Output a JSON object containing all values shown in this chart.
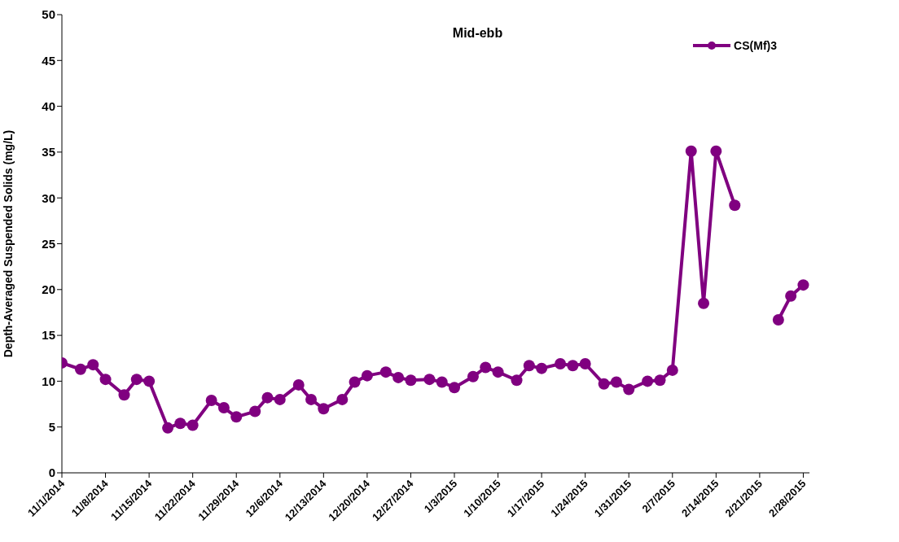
{
  "chart_data": {
    "type": "line",
    "title": "Mid-ebb",
    "ylabel": "Depth-Averaged Suspended Solids (mg/L)",
    "x": [
      "2014-11-01",
      "2014-11-04",
      "2014-11-06",
      "2014-11-08",
      "2014-11-11",
      "2014-11-13",
      "2014-11-15",
      "2014-11-18",
      "2014-11-20",
      "2014-11-22",
      "2014-11-25",
      "2014-11-27",
      "2014-11-29",
      "2014-12-02",
      "2014-12-04",
      "2014-12-06",
      "2014-12-09",
      "2014-12-11",
      "2014-12-13",
      "2014-12-16",
      "2014-12-18",
      "2014-12-20",
      "2014-12-23",
      "2014-12-25",
      "2014-12-27",
      "2014-12-30",
      "2015-01-01",
      "2015-01-03",
      "2015-01-06",
      "2015-01-08",
      "2015-01-10",
      "2015-01-13",
      "2015-01-15",
      "2015-01-17",
      "2015-01-20",
      "2015-01-22",
      "2015-01-24",
      "2015-01-27",
      "2015-01-29",
      "2015-01-31",
      "2015-02-03",
      "2015-02-05",
      "2015-02-07",
      "2015-02-10",
      "2015-02-12",
      "2015-02-14",
      "2015-02-17",
      "2015-02-20",
      "2015-02-24",
      "2015-02-26",
      "2015-02-28"
    ],
    "series": [
      {
        "name": "CS(Mf)3",
        "color": "#800080",
        "values": [
          12.0,
          11.3,
          11.8,
          10.2,
          8.5,
          10.2,
          10.0,
          4.9,
          5.4,
          5.2,
          7.9,
          7.1,
          6.1,
          6.7,
          8.2,
          8.0,
          9.6,
          8.0,
          7.0,
          8.0,
          9.9,
          10.6,
          11.0,
          10.4,
          10.1,
          10.2,
          9.9,
          9.3,
          10.5,
          11.5,
          11.0,
          10.1,
          11.7,
          11.4,
          11.9,
          11.7,
          11.9,
          9.7,
          9.9,
          9.1,
          10.0,
          10.1,
          11.2,
          35.1,
          18.5,
          35.1,
          29.2,
          null,
          16.7,
          19.3,
          20.5
        ]
      }
    ],
    "xlim": [
      "2014-11-01",
      "2015-03-01"
    ],
    "xticks": [
      {
        "value": "2014-11-01",
        "label": "11/1/2014"
      },
      {
        "value": "2014-11-08",
        "label": "11/8/2014"
      },
      {
        "value": "2014-11-15",
        "label": "11/15/2014"
      },
      {
        "value": "2014-11-22",
        "label": "11/22/2014"
      },
      {
        "value": "2014-11-29",
        "label": "11/29/2014"
      },
      {
        "value": "2014-12-06",
        "label": "12/6/2014"
      },
      {
        "value": "2014-12-13",
        "label": "12/13/2014"
      },
      {
        "value": "2014-12-20",
        "label": "12/20/2014"
      },
      {
        "value": "2014-12-27",
        "label": "12/27/2014"
      },
      {
        "value": "2015-01-03",
        "label": "1/3/2015"
      },
      {
        "value": "2015-01-10",
        "label": "1/10/2015"
      },
      {
        "value": "2015-01-17",
        "label": "1/17/2015"
      },
      {
        "value": "2015-01-24",
        "label": "1/24/2015"
      },
      {
        "value": "2015-01-31",
        "label": "1/31/2015"
      },
      {
        "value": "2015-02-07",
        "label": "2/7/2015"
      },
      {
        "value": "2015-02-14",
        "label": "2/14/2015"
      },
      {
        "value": "2015-02-21",
        "label": "2/21/2015"
      },
      {
        "value": "2015-02-28",
        "label": "2/28/2015"
      }
    ],
    "ylim": [
      0,
      50
    ],
    "yticks": [
      0,
      5,
      10,
      15,
      20,
      25,
      30,
      35,
      40,
      45,
      50
    ],
    "grid": false,
    "legend": "top right",
    "marker": "circle",
    "line_style": "solid"
  }
}
